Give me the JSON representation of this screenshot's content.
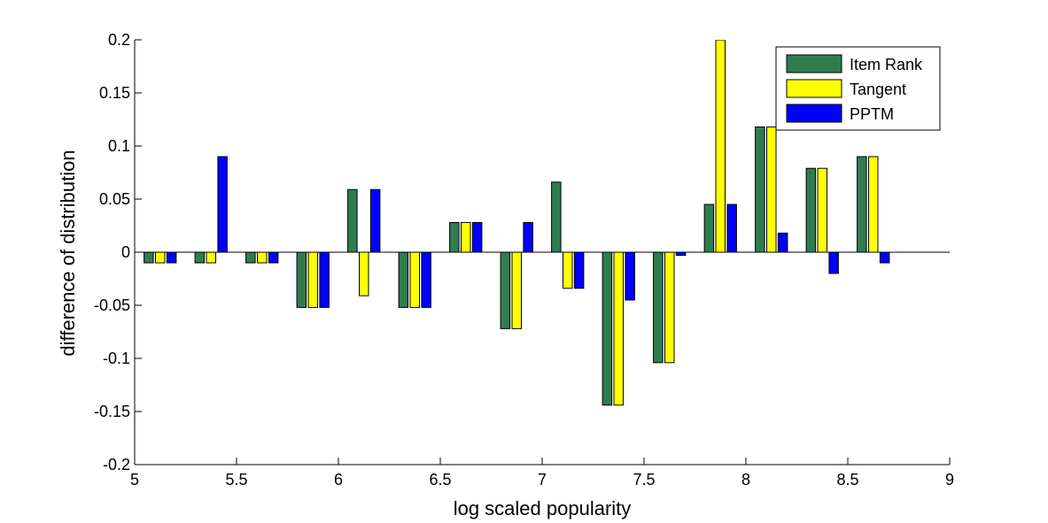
{
  "chart_data": {
    "type": "bar",
    "title": "",
    "xlabel": "log scaled popularity",
    "ylabel": "difference of distribution",
    "xlim": [
      5,
      9
    ],
    "ylim": [
      -0.2,
      0.2
    ],
    "xticks": [
      "5",
      "5.5",
      "6",
      "6.5",
      "7",
      "7.5",
      "8",
      "8.5",
      "9"
    ],
    "yticks": [
      "-0.2",
      "-0.15",
      "-0.1",
      "-0.05",
      "0",
      "0.05",
      "0.1",
      "0.15",
      "0.2"
    ],
    "x": [
      5.125,
      5.375,
      5.625,
      5.875,
      6.125,
      6.375,
      6.625,
      6.875,
      7.125,
      7.375,
      7.625,
      7.875,
      8.125,
      8.375,
      8.625
    ],
    "series": [
      {
        "name": "Item Rank",
        "color": "#2e7d4f",
        "values": [
          -0.01,
          -0.01,
          -0.01,
          -0.052,
          0.059,
          -0.052,
          0.028,
          -0.072,
          0.066,
          -0.144,
          -0.104,
          0.045,
          0.118,
          0.079,
          0.09
        ]
      },
      {
        "name": "Tangent",
        "color": "#ffff00",
        "values": [
          -0.01,
          -0.01,
          -0.01,
          -0.052,
          -0.041,
          -0.052,
          0.028,
          -0.072,
          -0.034,
          -0.144,
          -0.104,
          0.2,
          0.118,
          0.079,
          0.09
        ]
      },
      {
        "name": "PPTM",
        "color": "#0000ff",
        "values": [
          -0.01,
          0.09,
          -0.01,
          -0.052,
          0.059,
          -0.052,
          0.028,
          0.028,
          -0.034,
          -0.045,
          -0.003,
          0.045,
          0.018,
          -0.02,
          -0.01
        ]
      }
    ],
    "legend_position": "top-right",
    "grid": false
  }
}
